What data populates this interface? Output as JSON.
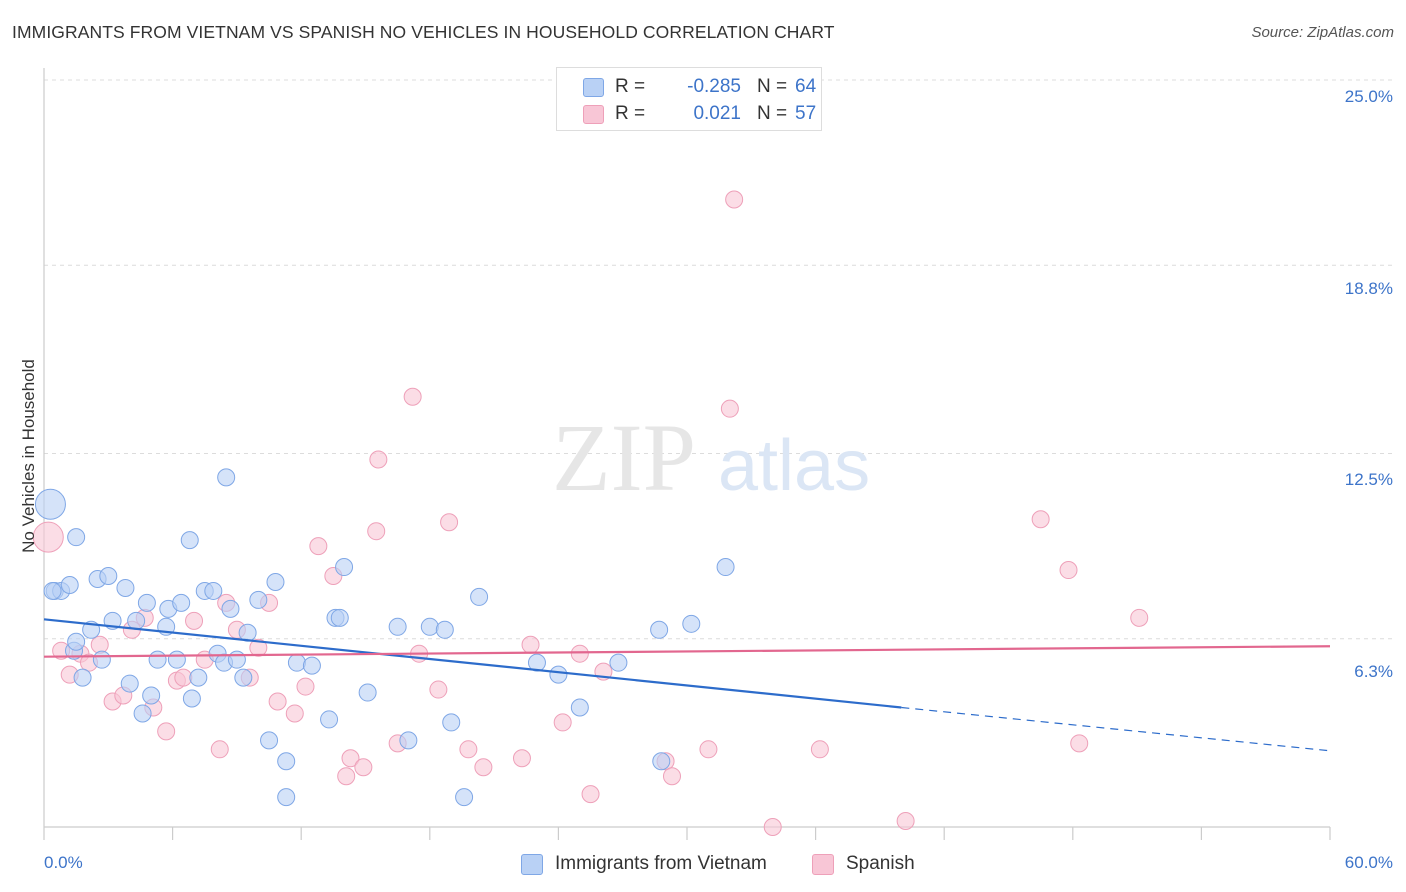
{
  "header": {
    "title": "IMMIGRANTS FROM VIETNAM VS SPANISH NO VEHICLES IN HOUSEHOLD CORRELATION CHART",
    "source": "Source: ZipAtlas.com"
  },
  "watermark": {
    "zip": "ZIP",
    "atlas": "atlas"
  },
  "stats": {
    "row1": {
      "r_label": "R =",
      "r_value": "-0.285",
      "n_label": "N =",
      "n_value": "64"
    },
    "row2": {
      "r_label": "R =",
      "r_value": "0.021",
      "n_label": "N =",
      "n_value": "57"
    }
  },
  "legend": {
    "series1": "Immigrants from Vietnam",
    "series2": "Spanish"
  },
  "colors": {
    "series1_fill": "#b9d1f5",
    "series1_stroke": "#7fa7e6",
    "series1_line": "#2d6ccb",
    "series2_fill": "#f8c6d6",
    "series2_stroke": "#eea0b9",
    "series2_line": "#e2678f",
    "tick_text": "#3d74c9"
  },
  "chart_data": {
    "type": "scatter",
    "title": "IMMIGRANTS FROM VIETNAM VS SPANISH NO VEHICLES IN HOUSEHOLD CORRELATION CHART",
    "xlabel": "",
    "ylabel": "No Vehicles in Household",
    "xlim": [
      0,
      60
    ],
    "ylim": [
      0,
      25
    ],
    "x_tick_labels": [
      "0.0%",
      "60.0%"
    ],
    "y_ticks": [
      6.3,
      12.5,
      18.8,
      25.0
    ],
    "y_tick_labels": [
      "6.3%",
      "12.5%",
      "18.8%",
      "25.0%"
    ],
    "grid": "horizontal dashed",
    "legend_position": "bottom",
    "series": [
      {
        "name": "Immigrants from Vietnam",
        "points": [
          [
            0.3,
            10.8
          ],
          [
            0.5,
            7.9
          ],
          [
            0.8,
            7.9
          ],
          [
            1.2,
            8.1
          ],
          [
            1.4,
            5.9
          ],
          [
            1.5,
            9.7
          ],
          [
            1.5,
            6.2
          ],
          [
            1.8,
            5.0
          ],
          [
            2.2,
            6.6
          ],
          [
            2.5,
            8.3
          ],
          [
            2.7,
            5.6
          ],
          [
            3.0,
            8.4
          ],
          [
            3.2,
            6.9
          ],
          [
            3.8,
            8.0
          ],
          [
            4.0,
            4.8
          ],
          [
            4.3,
            6.9
          ],
          [
            4.6,
            3.8
          ],
          [
            4.8,
            7.5
          ],
          [
            5.0,
            4.4
          ],
          [
            5.3,
            5.6
          ],
          [
            5.7,
            6.7
          ],
          [
            5.8,
            7.3
          ],
          [
            6.2,
            5.6
          ],
          [
            6.4,
            7.5
          ],
          [
            6.8,
            9.6
          ],
          [
            6.9,
            4.3
          ],
          [
            7.2,
            5.0
          ],
          [
            7.5,
            7.9
          ],
          [
            7.9,
            7.9
          ],
          [
            8.1,
            5.8
          ],
          [
            8.4,
            5.5
          ],
          [
            8.5,
            11.7
          ],
          [
            8.7,
            7.3
          ],
          [
            9.0,
            5.6
          ],
          [
            9.3,
            5.0
          ],
          [
            9.5,
            6.5
          ],
          [
            10.0,
            7.6
          ],
          [
            10.5,
            2.9
          ],
          [
            10.8,
            8.2
          ],
          [
            11.3,
            2.2
          ],
          [
            11.3,
            1.0
          ],
          [
            11.8,
            5.5
          ],
          [
            12.5,
            5.4
          ],
          [
            13.3,
            3.6
          ],
          [
            13.6,
            7.0
          ],
          [
            13.8,
            7.0
          ],
          [
            14.0,
            8.7
          ],
          [
            15.1,
            4.5
          ],
          [
            16.5,
            6.7
          ],
          [
            17.0,
            2.9
          ],
          [
            18.0,
            6.7
          ],
          [
            18.7,
            6.6
          ],
          [
            19.0,
            3.5
          ],
          [
            19.6,
            1.0
          ],
          [
            20.3,
            7.7
          ],
          [
            23.0,
            5.5
          ],
          [
            24.0,
            5.1
          ],
          [
            25.0,
            4.0
          ],
          [
            26.8,
            5.5
          ],
          [
            28.7,
            6.6
          ],
          [
            28.8,
            2.2
          ],
          [
            30.2,
            6.8
          ],
          [
            31.8,
            8.7
          ],
          [
            0.4,
            7.9
          ]
        ],
        "trend": {
          "x0": 0,
          "y0": 6.95,
          "x1": 40,
          "y1": 4.0,
          "dashed_to_x": 60,
          "dashed_to_y": 2.55
        }
      },
      {
        "name": "Spanish",
        "points": [
          [
            0.2,
            9.7
          ],
          [
            0.8,
            5.9
          ],
          [
            1.2,
            5.1
          ],
          [
            1.7,
            5.8
          ],
          [
            2.1,
            5.5
          ],
          [
            2.6,
            6.1
          ],
          [
            3.2,
            4.2
          ],
          [
            3.7,
            4.4
          ],
          [
            4.1,
            6.6
          ],
          [
            4.7,
            7.0
          ],
          [
            5.1,
            4.0
          ],
          [
            5.7,
            3.2
          ],
          [
            6.2,
            4.9
          ],
          [
            6.5,
            5.0
          ],
          [
            7.0,
            6.9
          ],
          [
            7.5,
            5.6
          ],
          [
            8.2,
            2.6
          ],
          [
            8.5,
            7.5
          ],
          [
            9.0,
            6.6
          ],
          [
            9.6,
            5.0
          ],
          [
            10.0,
            6.0
          ],
          [
            10.5,
            7.5
          ],
          [
            10.9,
            4.2
          ],
          [
            11.7,
            3.8
          ],
          [
            12.2,
            4.7
          ],
          [
            12.8,
            9.4
          ],
          [
            13.5,
            8.4
          ],
          [
            14.1,
            1.7
          ],
          [
            14.3,
            2.3
          ],
          [
            14.9,
            2.0
          ],
          [
            15.5,
            9.9
          ],
          [
            15.6,
            12.3
          ],
          [
            16.5,
            2.8
          ],
          [
            17.2,
            14.4
          ],
          [
            17.5,
            5.8
          ],
          [
            18.4,
            4.6
          ],
          [
            18.9,
            10.2
          ],
          [
            19.8,
            2.6
          ],
          [
            20.5,
            2.0
          ],
          [
            22.3,
            2.3
          ],
          [
            22.7,
            6.1
          ],
          [
            24.2,
            3.5
          ],
          [
            25.0,
            5.8
          ],
          [
            25.5,
            1.1
          ],
          [
            26.1,
            5.2
          ],
          [
            29.0,
            2.2
          ],
          [
            29.3,
            1.7
          ],
          [
            31.0,
            2.6
          ],
          [
            32.0,
            14.0
          ],
          [
            32.2,
            21.0
          ],
          [
            34.0,
            0.0
          ],
          [
            36.2,
            2.6
          ],
          [
            40.2,
            0.2
          ],
          [
            46.5,
            10.3
          ],
          [
            47.8,
            8.6
          ],
          [
            48.3,
            2.8
          ],
          [
            51.1,
            7.0
          ]
        ],
        "trend": {
          "x0": 0,
          "y0": 5.7,
          "x1": 60,
          "y1": 6.05
        }
      }
    ]
  }
}
